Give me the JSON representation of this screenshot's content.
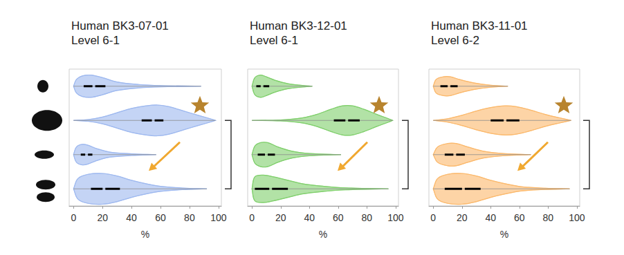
{
  "chart_data": [
    {
      "type": "violin",
      "title": "Human BK3-07-01",
      "subtitle": "Level 6-1",
      "x_label": "%",
      "color": "#9db8ef",
      "categories": [
        null,
        null,
        null,
        null
      ],
      "xlim": [
        -3,
        102
      ],
      "xticks": [
        0,
        20,
        40,
        60,
        80,
        100
      ],
      "grid": false,
      "tick_labels": "x",
      "violins": [
        {
          "density": [
            [
              0,
              0
            ],
            [
              2,
              0.4
            ],
            [
              6,
              0.6
            ],
            [
              12,
              0.65
            ],
            [
              20,
              0.5
            ],
            [
              30,
              0.25
            ],
            [
              45,
              0.1
            ],
            [
              60,
              0.04
            ],
            [
              88,
              0
            ]
          ],
          "quartiles": [
            7,
            14,
            22
          ]
        },
        {
          "density": [
            [
              0,
              0
            ],
            [
              10,
              0.05
            ],
            [
              20,
              0.2
            ],
            [
              30,
              0.45
            ],
            [
              40,
              0.7
            ],
            [
              50,
              0.85
            ],
            [
              58,
              0.9
            ],
            [
              66,
              0.8
            ],
            [
              76,
              0.55
            ],
            [
              86,
              0.3
            ],
            [
              95,
              0.08
            ],
            [
              98,
              0
            ]
          ],
          "quartiles": [
            47,
            55,
            62
          ]
        },
        {
          "density": [
            [
              0,
              0
            ],
            [
              2,
              0.45
            ],
            [
              6,
              0.6
            ],
            [
              10,
              0.55
            ],
            [
              16,
              0.35
            ],
            [
              25,
              0.15
            ],
            [
              40,
              0.05
            ],
            [
              57,
              0
            ]
          ],
          "quartiles": [
            5,
            9,
            13
          ]
        },
        {
          "density": [
            [
              0,
              0
            ],
            [
              3,
              0.6
            ],
            [
              10,
              0.85
            ],
            [
              20,
              0.9
            ],
            [
              30,
              0.75
            ],
            [
              40,
              0.5
            ],
            [
              50,
              0.3
            ],
            [
              60,
              0.15
            ],
            [
              75,
              0.05
            ],
            [
              92,
              0
            ]
          ],
          "quartiles": [
            12,
            21,
            32
          ]
        }
      ]
    },
    {
      "type": "violin",
      "title": "Human BK3-12-01",
      "subtitle": "Level 6-1",
      "x_label": "%",
      "color": "#7fcf6b",
      "categories": [
        null,
        null,
        null,
        null
      ],
      "xlim": [
        -3,
        102
      ],
      "xticks": [
        0,
        20,
        40,
        60,
        80,
        100
      ],
      "grid": false,
      "tick_labels": "x",
      "violins": [
        {
          "density": [
            [
              0,
              0
            ],
            [
              2,
              0.5
            ],
            [
              6,
              0.65
            ],
            [
              10,
              0.55
            ],
            [
              16,
              0.35
            ],
            [
              25,
              0.15
            ],
            [
              35,
              0.05
            ],
            [
              42,
              0
            ]
          ],
          "quartiles": [
            3,
            7,
            12
          ]
        },
        {
          "density": [
            [
              0,
              0
            ],
            [
              20,
              0.03
            ],
            [
              35,
              0.15
            ],
            [
              45,
              0.35
            ],
            [
              55,
              0.65
            ],
            [
              63,
              0.85
            ],
            [
              70,
              0.85
            ],
            [
              78,
              0.65
            ],
            [
              87,
              0.35
            ],
            [
              95,
              0.1
            ],
            [
              98,
              0
            ]
          ],
          "quartiles": [
            57,
            66,
            75
          ]
        },
        {
          "density": [
            [
              0,
              0
            ],
            [
              2,
              0.5
            ],
            [
              6,
              0.7
            ],
            [
              11,
              0.7
            ],
            [
              18,
              0.45
            ],
            [
              28,
              0.2
            ],
            [
              40,
              0.07
            ],
            [
              62,
              0
            ]
          ],
          "quartiles": [
            4,
            10,
            16
          ]
        },
        {
          "density": [
            [
              0,
              0
            ],
            [
              2,
              0.7
            ],
            [
              8,
              0.8
            ],
            [
              15,
              0.7
            ],
            [
              25,
              0.5
            ],
            [
              35,
              0.3
            ],
            [
              50,
              0.15
            ],
            [
              65,
              0.06
            ],
            [
              95,
              0
            ]
          ],
          "quartiles": [
            2,
            13,
            25
          ]
        }
      ]
    },
    {
      "type": "violin",
      "title": "Human BK3-11-01",
      "subtitle": "Level 6-2",
      "x_label": "%",
      "color": "#fbb86a",
      "categories": [
        null,
        null,
        null,
        null
      ],
      "xlim": [
        -3,
        102
      ],
      "xticks": [
        0,
        20,
        40,
        60,
        80,
        100
      ],
      "grid": false,
      "tick_labels": "x",
      "violins": [
        {
          "density": [
            [
              0,
              0
            ],
            [
              2,
              0.4
            ],
            [
              7,
              0.55
            ],
            [
              12,
              0.55
            ],
            [
              18,
              0.4
            ],
            [
              28,
              0.2
            ],
            [
              40,
              0.06
            ],
            [
              52,
              0
            ]
          ],
          "quartiles": [
            5,
            11,
            17
          ]
        },
        {
          "density": [
            [
              0,
              0
            ],
            [
              10,
              0.1
            ],
            [
              20,
              0.3
            ],
            [
              30,
              0.55
            ],
            [
              40,
              0.75
            ],
            [
              50,
              0.85
            ],
            [
              58,
              0.8
            ],
            [
              68,
              0.6
            ],
            [
              78,
              0.35
            ],
            [
              88,
              0.15
            ],
            [
              96,
              0
            ]
          ],
          "quartiles": [
            40,
            50,
            60
          ]
        },
        {
          "density": [
            [
              0,
              0
            ],
            [
              3,
              0.45
            ],
            [
              10,
              0.65
            ],
            [
              16,
              0.65
            ],
            [
              24,
              0.45
            ],
            [
              35,
              0.2
            ],
            [
              50,
              0.06
            ],
            [
              68,
              0
            ]
          ],
          "quartiles": [
            8,
            15,
            22
          ]
        },
        {
          "density": [
            [
              0,
              0
            ],
            [
              3,
              0.6
            ],
            [
              10,
              0.85
            ],
            [
              20,
              0.9
            ],
            [
              30,
              0.75
            ],
            [
              40,
              0.5
            ],
            [
              50,
              0.3
            ],
            [
              62,
              0.12
            ],
            [
              78,
              0.04
            ],
            [
              95,
              0
            ]
          ],
          "quartiles": [
            8,
            21,
            33
          ]
        }
      ]
    }
  ]
}
